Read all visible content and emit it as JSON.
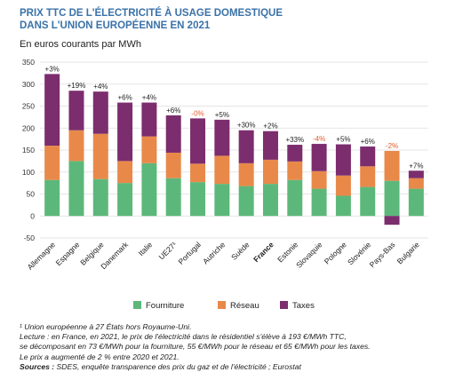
{
  "title_line1": "PRIX TTC DE L'ÉLECTRICITÉ À USAGE DOMESTIQUE",
  "title_line2": "DANS L'UNION EUROPÉENNE EN 2021",
  "subtitle": "En euros courants par MWh",
  "colors": {
    "Fourniture": "#5cb87a",
    "Réseau": "#e8894a",
    "Taxes": "#7b2d6e",
    "label_negative": "#e05a2b",
    "label_positive": "#222222"
  },
  "notes": {
    "footnote": "¹ Union européenne à 27 États hors Royaume-Uni.",
    "lecture1": "Lecture : en France, en 2021, le prix de l'électricité dans le résidentiel s'élève à 193 €/MWh TTC,",
    "lecture2": "se décomposant en 73 €/MWh pour la fourniture, 55 €/MWh pour le réseau et 65 €/MWh pour les taxes.",
    "lecture3": "Le prix a augmenté de 2 % entre 2020 et 2021.",
    "sources_label": "Sources :",
    "sources_text": " SDES, enquête transparence des prix du gaz et de l'électricité ; Eurostat"
  },
  "chart_data": {
    "type": "bar",
    "stacked": true,
    "categories": [
      "Allemagne",
      "Espagne",
      "Belgique",
      "Danemark",
      "Italie",
      "UE27¹",
      "Portugal",
      "Autriche",
      "Suède",
      "France",
      "Estonie",
      "Slovaquie",
      "Pologne",
      "Slovénie",
      "Pays-Bas",
      "Bulgarie"
    ],
    "highlight_category": "France",
    "series": [
      {
        "name": "Fourniture",
        "values": [
          82,
          125,
          84,
          75,
          120,
          86,
          77,
          73,
          68,
          73,
          82,
          62,
          46,
          66,
          80,
          62
        ]
      },
      {
        "name": "Réseau",
        "values": [
          78,
          70,
          103,
          50,
          61,
          58,
          42,
          64,
          52,
          55,
          42,
          40,
          46,
          47,
          68,
          24
        ]
      },
      {
        "name": "Taxes",
        "values": [
          163,
          90,
          96,
          133,
          77,
          85,
          103,
          82,
          75,
          65,
          38,
          62,
          71,
          45,
          -20,
          17
        ]
      }
    ],
    "bar_labels": [
      "+3%",
      "+19%",
      "+4%",
      "+6%",
      "+4%",
      "+6%",
      "-0%",
      "+5%",
      "+30%",
      "+2%",
      "+33%",
      "-4%",
      "+5%",
      "+6%",
      "-2%",
      "+7%"
    ],
    "y_ticks": [
      -50,
      0,
      50,
      100,
      150,
      200,
      250,
      300,
      350
    ],
    "ylim": [
      -50,
      350
    ],
    "grid": true,
    "legend": "bottom"
  }
}
